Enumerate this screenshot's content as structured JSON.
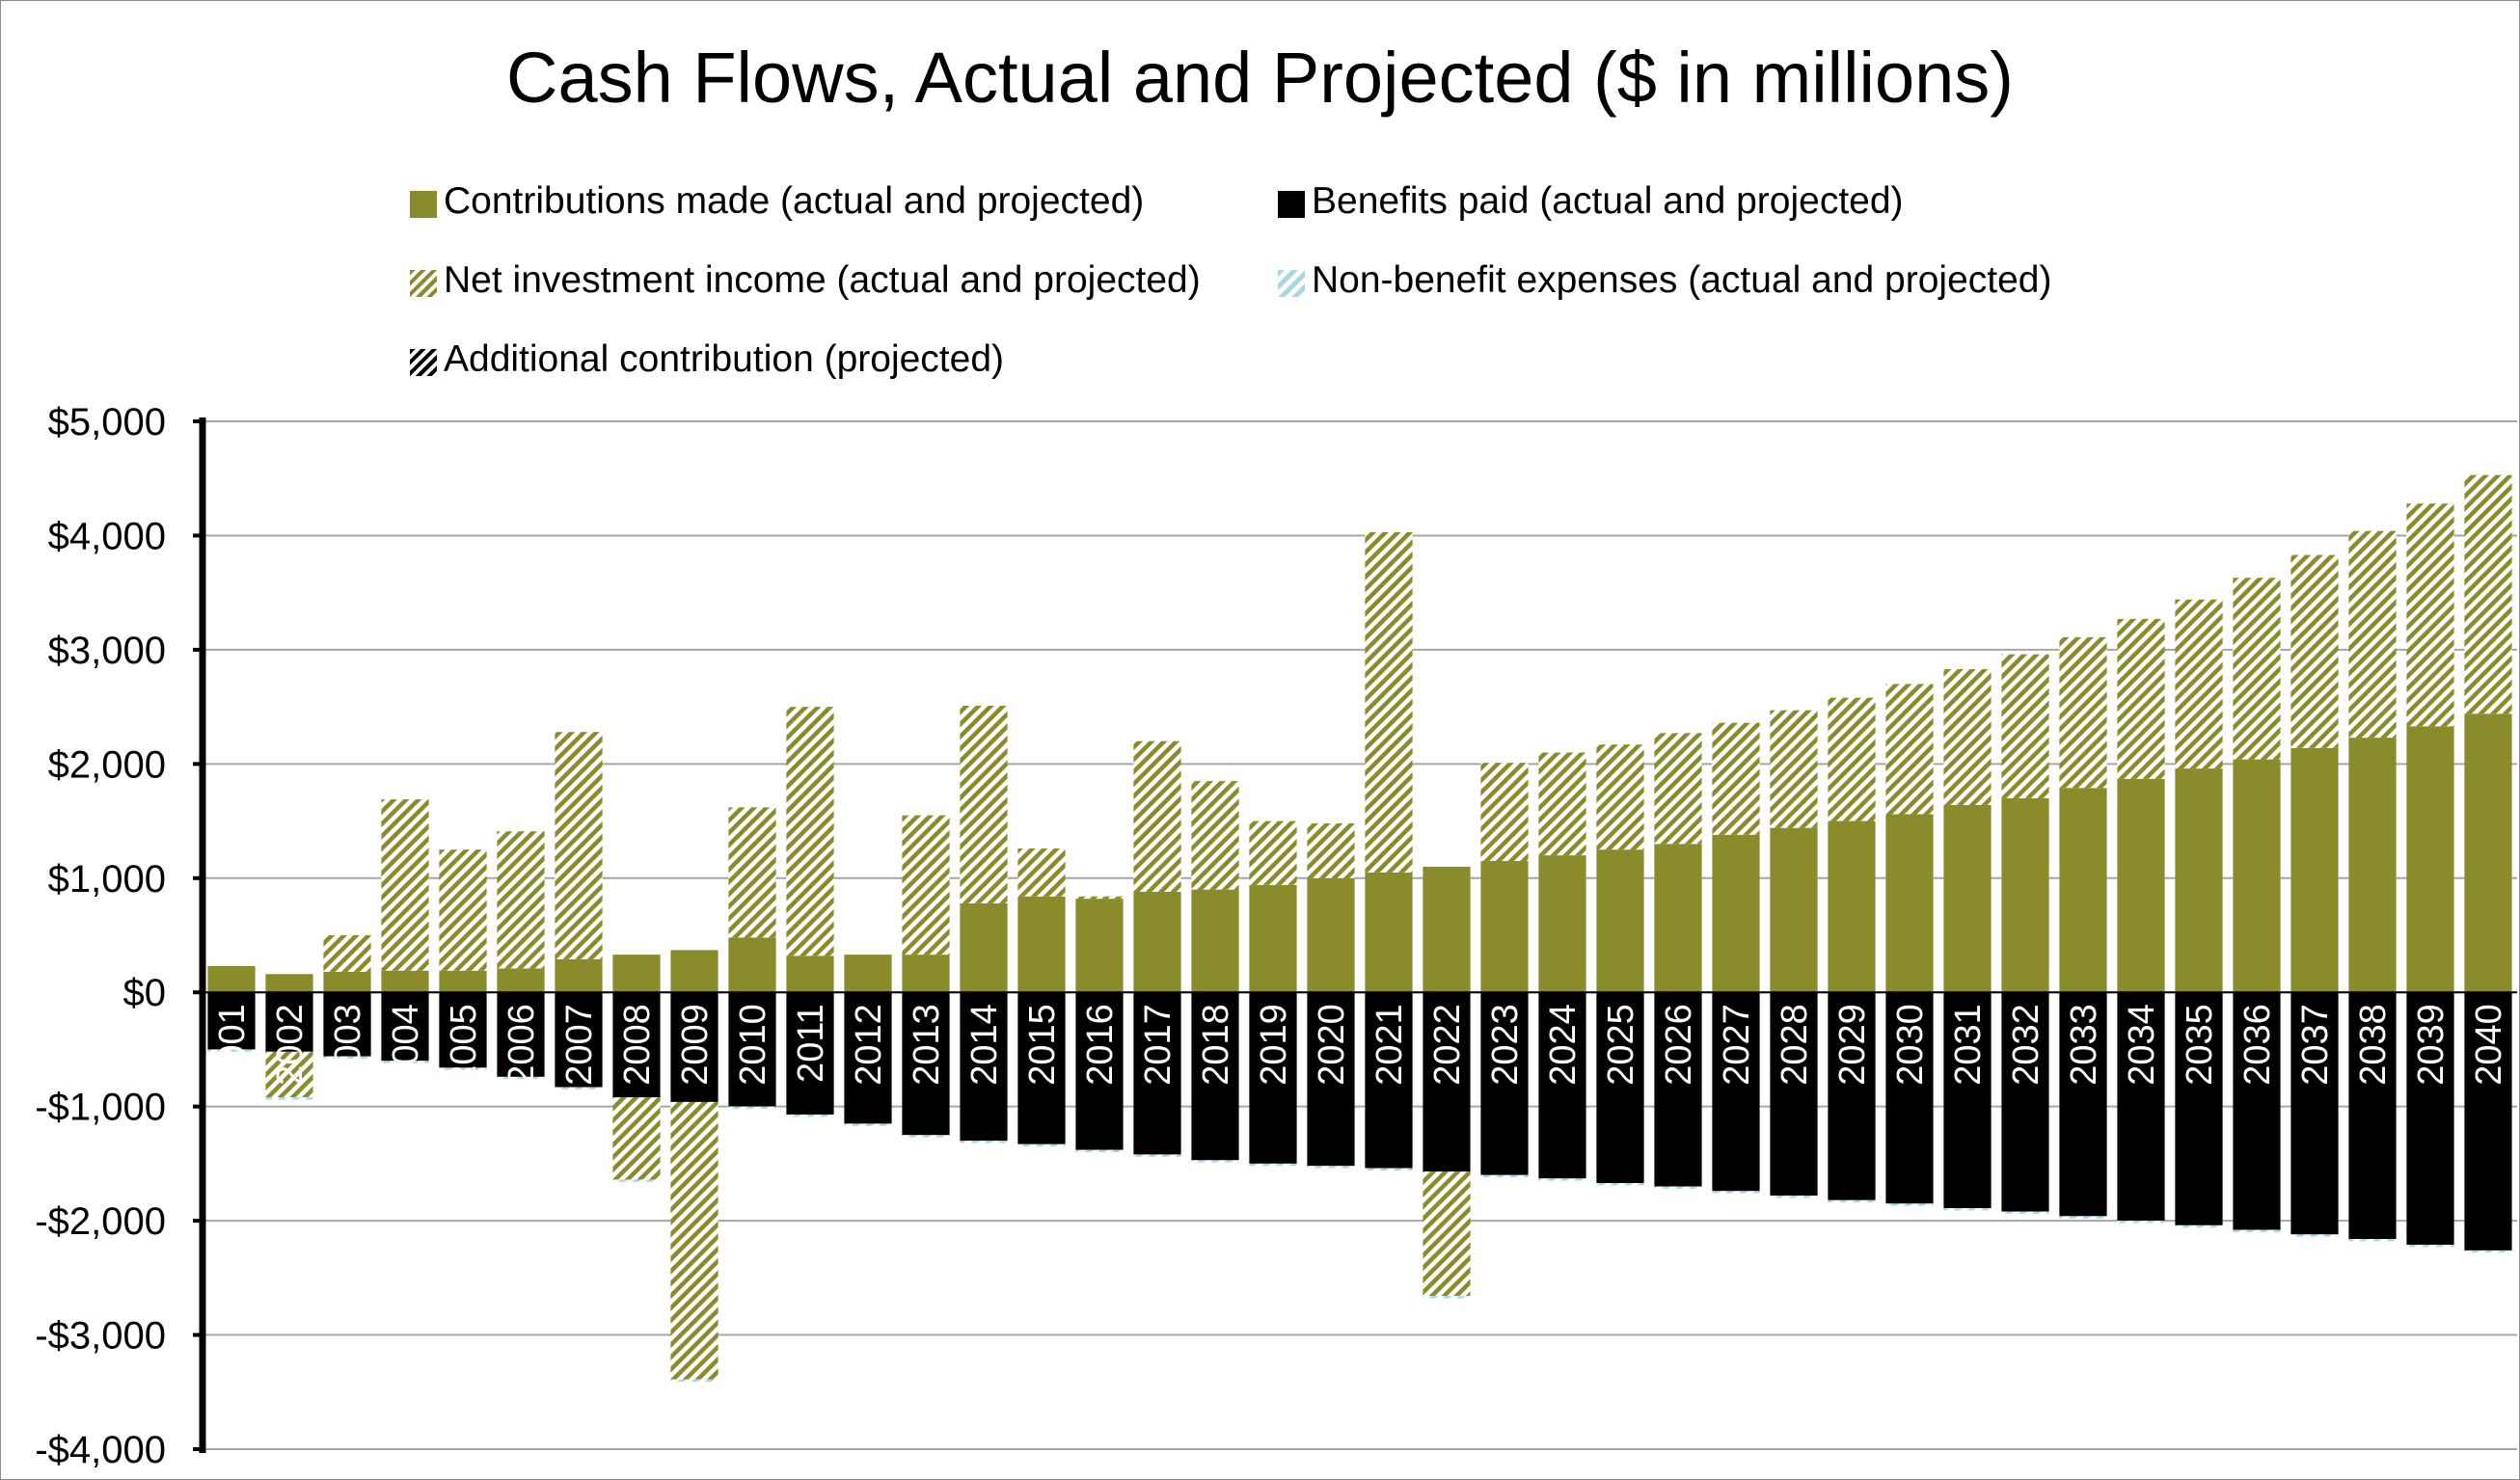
{
  "colors": {
    "contributions": "#8a8c2c",
    "benefits": "#000000",
    "investment_stripe": "#8a8c2c",
    "expenses": "#a8d8e8",
    "additional": "#000000",
    "grid": "#a6a6a6"
  },
  "chart_data": {
    "type": "bar",
    "stacked": true,
    "title": "Cash Flows, Actual and Projected ($ in millions)",
    "xlabel": "",
    "ylabel": "",
    "ylim": [
      -4000,
      5000
    ],
    "yticks": [
      5000,
      4000,
      3000,
      2000,
      1000,
      0,
      -1000,
      -2000,
      -3000,
      -4000
    ],
    "ytick_labels": [
      "$5,000",
      "$4,000",
      "$3,000",
      "$2,000",
      "$1,000",
      "$0",
      "-$1,000",
      "-$2,000",
      "-$3,000",
      "-$4,000"
    ],
    "grid": true,
    "legend_position": "top",
    "categories": [
      "2001",
      "2002",
      "2003",
      "2004",
      "2005",
      "2006",
      "2007",
      "2008",
      "2009",
      "2010",
      "2011",
      "2012",
      "2013",
      "2014",
      "2015",
      "2016",
      "2017",
      "2018",
      "2019",
      "2020",
      "2021",
      "2022",
      "2023",
      "2024",
      "2025",
      "2026",
      "2027",
      "2028",
      "2029",
      "2030",
      "2031",
      "2032",
      "2033",
      "2034",
      "2035",
      "2036",
      "2037",
      "2038",
      "2039",
      "2040"
    ],
    "series": [
      {
        "name": "Contributions made (actual and projected)",
        "key": "contributions",
        "values": [
          230,
          160,
          180,
          190,
          190,
          210,
          290,
          330,
          370,
          480,
          320,
          330,
          330,
          780,
          840,
          820,
          880,
          900,
          940,
          1000,
          1050,
          1100,
          1150,
          1200,
          1250,
          1300,
          1380,
          1440,
          1500,
          1560,
          1640,
          1700,
          1790,
          1870,
          1960,
          2040,
          2140,
          2230,
          2330,
          2440
        ]
      },
      {
        "name": "Benefits paid (actual and projected)",
        "key": "benefits",
        "values": [
          -500,
          -520,
          -560,
          -600,
          -660,
          -740,
          -830,
          -920,
          -960,
          -1000,
          -1070,
          -1150,
          -1250,
          -1300,
          -1330,
          -1380,
          -1420,
          -1470,
          -1500,
          -1520,
          -1540,
          -1570,
          -1600,
          -1630,
          -1670,
          -1700,
          -1740,
          -1780,
          -1820,
          -1850,
          -1890,
          -1920,
          -1960,
          -2000,
          -2040,
          -2080,
          -2120,
          -2160,
          -2210,
          -2260
        ]
      },
      {
        "name": "Net investment income (actual and projected)",
        "key": "investment",
        "values": [
          0,
          -400,
          320,
          1500,
          1060,
          1200,
          1990,
          -720,
          -2430,
          1140,
          2180,
          0,
          1220,
          1730,
          420,
          20,
          1320,
          950,
          560,
          480,
          2980,
          -1090,
          860,
          900,
          920,
          970,
          980,
          1030,
          1080,
          1140,
          1190,
          1260,
          1320,
          1400,
          1480,
          1590,
          1690,
          1810,
          1950,
          2090
        ]
      },
      {
        "name": "Non-benefit expenses (actual and projected)",
        "key": "expenses",
        "values": [
          -20,
          -20,
          -20,
          -20,
          -20,
          -20,
          -20,
          -20,
          -20,
          -20,
          -20,
          -20,
          -20,
          -20,
          -20,
          -20,
          -20,
          -20,
          -20,
          -20,
          -20,
          -20,
          -20,
          -20,
          -20,
          -20,
          -20,
          -20,
          -20,
          -20,
          -20,
          -20,
          -20,
          -20,
          -20,
          -20,
          -20,
          -20,
          -20,
          -20
        ]
      },
      {
        "name": "Additional contribution (projected)",
        "key": "additional",
        "values": [
          0,
          0,
          0,
          0,
          0,
          0,
          0,
          0,
          0,
          0,
          0,
          0,
          0,
          0,
          0,
          0,
          0,
          0,
          0,
          0,
          0,
          0,
          0,
          0,
          0,
          0,
          0,
          0,
          0,
          0,
          0,
          0,
          0,
          0,
          0,
          0,
          0,
          0,
          0,
          0
        ]
      }
    ]
  }
}
